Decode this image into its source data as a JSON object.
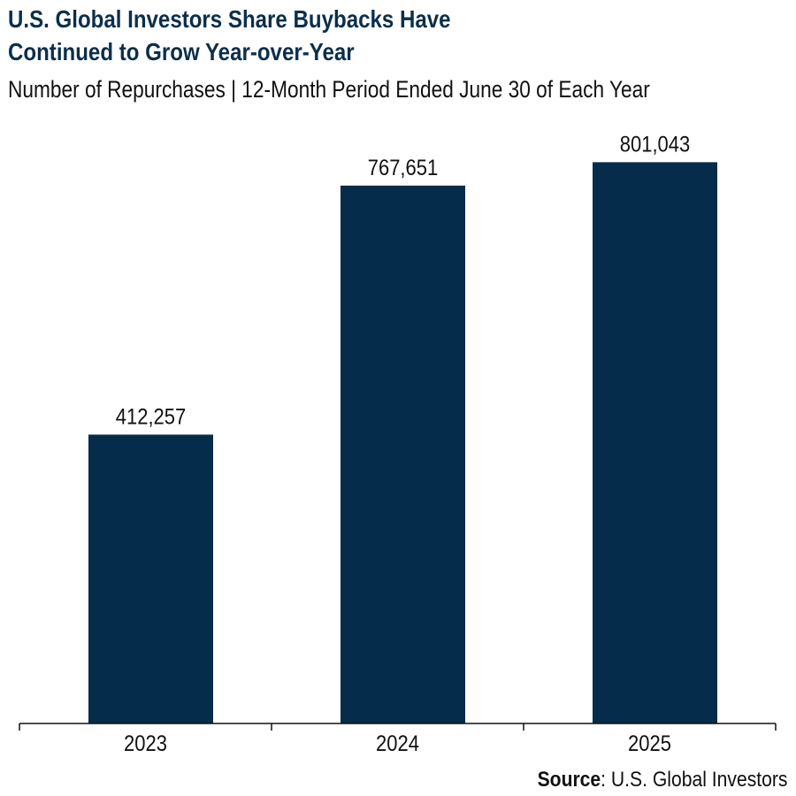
{
  "title_line1": "U.S. Global Investors Share Buybacks Have",
  "title_line2": "Continued to Grow Year-over-Year",
  "subtitle": "Number of Repurchases | 12-Month Period Ended June 30 of Each Year",
  "source_label": "Source",
  "source_text": ": U.S. Global Investors",
  "colors": {
    "bar": "#052c4a",
    "title": "#0b2f4c"
  },
  "chart_data": {
    "type": "bar",
    "categories": [
      "2023",
      "2024",
      "2025"
    ],
    "values": [
      412257,
      767651,
      801043
    ],
    "data_labels": [
      "412,257",
      "767,651",
      "801,043"
    ],
    "title": "U.S. Global Investors Share Buybacks Have Continued to Grow Year-over-Year",
    "subtitle": "Number of Repurchases | 12-Month Period Ended June 30 of Each Year",
    "ylim": [
      0,
      900000
    ],
    "grid": false,
    "legend": "none"
  }
}
